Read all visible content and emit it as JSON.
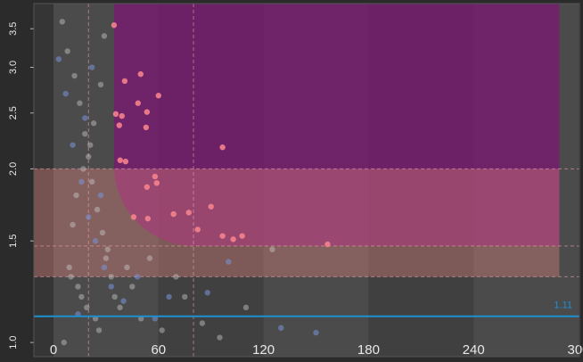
{
  "chart_data": {
    "type": "scatter",
    "xlim": [
      -11.2,
      300.5
    ],
    "ylim": [
      0.945,
      3.87
    ],
    "log_y": true,
    "xticks": [
      0,
      60,
      120,
      180,
      240,
      300
    ],
    "yticks": [
      {
        "value": 1,
        "label": "1.0"
      },
      1.5,
      {
        "value": 2,
        "label": "2.0"
      },
      2.5,
      {
        "value": 3,
        "label": "3.0"
      },
      3.5
    ],
    "regions": [
      {
        "color": "rgba(125,20,115,0.72)",
        "x": [
          34.6,
          289
        ],
        "y": [
          1.47,
          3.87
        ]
      },
      {
        "color": "rgba(225,135,130,0.38)",
        "x": [
          -11.2,
          289
        ],
        "y": [
          1.3,
          2.0
        ]
      }
    ],
    "vlines": [
      20,
      80
    ],
    "hline": {
      "value": 1.11,
      "color": "#1e90d0"
    },
    "series": [
      {
        "color": "rgba(200,200,200,0.45)",
        "x": [
          5,
          8,
          12,
          15,
          18,
          20,
          22,
          25,
          28,
          30,
          10,
          14,
          16,
          19,
          24,
          26,
          6,
          9,
          11,
          13,
          17,
          21,
          23,
          27,
          29,
          31,
          33,
          35,
          38,
          42,
          45,
          50,
          55,
          62,
          70,
          75,
          85,
          95,
          110,
          125
        ],
        "values": [
          3.6,
          3.2,
          2.9,
          2.6,
          2.3,
          2.1,
          1.9,
          1.7,
          1.55,
          1.4,
          1.3,
          1.25,
          1.2,
          1.15,
          1.1,
          1.05,
          1.0,
          1.35,
          1.6,
          1.8,
          2.0,
          2.2,
          2.4,
          2.8,
          3.4,
          1.45,
          1.3,
          1.2,
          1.15,
          1.35,
          1.25,
          1.1,
          1.4,
          1.05,
          1.3,
          1.2,
          1.08,
          1.02,
          1.15,
          1.45
        ]
      },
      {
        "color": "rgba(120,150,220,0.55)",
        "x": [
          3,
          7,
          11,
          16,
          20,
          24,
          29,
          33,
          14,
          18,
          22,
          40,
          48,
          58,
          88,
          130,
          150,
          100,
          66,
          27
        ],
        "values": [
          3.1,
          2.7,
          2.2,
          1.9,
          1.65,
          1.5,
          1.35,
          1.25,
          1.12,
          2.45,
          3.0,
          1.18,
          1.3,
          1.1,
          1.22,
          1.06,
          1.04,
          1.38,
          1.2,
          1.8
        ]
      },
      {
        "color": "rgba(245,130,140,0.9)",
        "x": [
          34.6,
          40.7,
          35.6,
          39.1,
          37.6,
          49.8,
          53.4,
          60.0,
          48.3,
          52.9,
          38.1,
          41.2,
          53.4,
          58.0,
          59.0,
          68.6,
          77.3,
          90.0,
          82.4,
          96.6,
          102.7,
          107.8,
          156.6,
          96.6,
          53.9,
          45.8
        ],
        "values": [
          3.55,
          2.84,
          2.49,
          2.47,
          2.38,
          2.92,
          2.51,
          2.68,
          2.6,
          2.36,
          2.07,
          2.06,
          1.86,
          1.94,
          1.89,
          1.67,
          1.68,
          1.72,
          1.57,
          1.53,
          1.51,
          1.53,
          1.48,
          2.18,
          1.64,
          1.65
        ]
      }
    ]
  }
}
